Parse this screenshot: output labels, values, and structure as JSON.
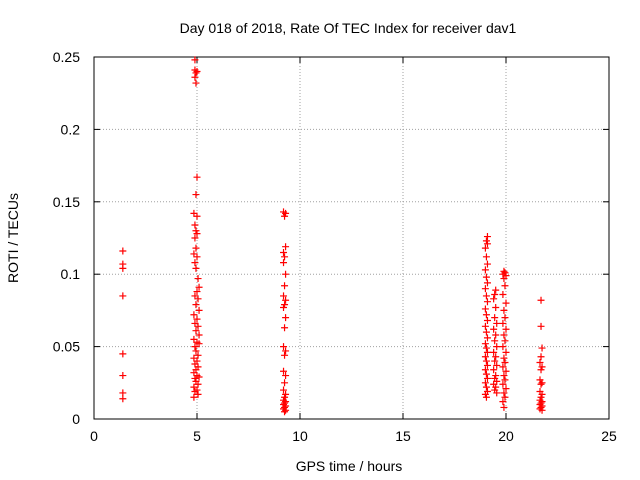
{
  "chart_data": {
    "type": "scatter",
    "title": "Day 018 of 2018, Rate Of TEC Index for receiver dav1",
    "xlabel": "GPS time / hours",
    "ylabel": "ROTI / TECUs",
    "xlim": [
      0,
      25
    ],
    "ylim": [
      0,
      0.25
    ],
    "x_ticks": [
      "0",
      "5",
      "10",
      "15",
      "20",
      "25"
    ],
    "y_ticks": [
      "0",
      "0.05",
      "0.1",
      "0.15",
      "0.2",
      "0.25"
    ],
    "grid": true,
    "legend": "none",
    "marker": "plus",
    "color": "#ff0000",
    "series": [
      {
        "points": [
          [
            1.4,
            0.116
          ],
          [
            1.4,
            0.107
          ],
          [
            1.4,
            0.104
          ],
          [
            1.4,
            0.085
          ],
          [
            1.4,
            0.045
          ],
          [
            1.4,
            0.03
          ],
          [
            1.4,
            0.018
          ],
          [
            1.4,
            0.014
          ],
          [
            4.9,
            0.248
          ],
          [
            4.9,
            0.241
          ],
          [
            4.95,
            0.239
          ],
          [
            5.0,
            0.24
          ],
          [
            4.9,
            0.236
          ],
          [
            4.95,
            0.232
          ],
          [
            5.0,
            0.167
          ],
          [
            4.95,
            0.155
          ],
          [
            4.85,
            0.142
          ],
          [
            5.0,
            0.14
          ],
          [
            4.9,
            0.134
          ],
          [
            4.95,
            0.13
          ],
          [
            5.0,
            0.128
          ],
          [
            4.9,
            0.125
          ],
          [
            4.95,
            0.118
          ],
          [
            4.85,
            0.114
          ],
          [
            5.0,
            0.112
          ],
          [
            4.9,
            0.108
          ],
          [
            4.95,
            0.104
          ],
          [
            5.05,
            0.097
          ],
          [
            5.1,
            0.091
          ],
          [
            5.0,
            0.088
          ],
          [
            4.9,
            0.085
          ],
          [
            5.05,
            0.083
          ],
          [
            4.95,
            0.079
          ],
          [
            5.1,
            0.075
          ],
          [
            4.85,
            0.072
          ],
          [
            5.0,
            0.069
          ],
          [
            4.9,
            0.066
          ],
          [
            5.05,
            0.064
          ],
          [
            4.95,
            0.061
          ],
          [
            5.1,
            0.058
          ],
          [
            4.85,
            0.055
          ],
          [
            5.0,
            0.053
          ],
          [
            5.1,
            0.052
          ],
          [
            4.9,
            0.05
          ],
          [
            4.95,
            0.047
          ],
          [
            5.05,
            0.044
          ],
          [
            4.85,
            0.042
          ],
          [
            5.0,
            0.04
          ],
          [
            4.9,
            0.038
          ],
          [
            5.05,
            0.036
          ],
          [
            4.95,
            0.034
          ],
          [
            4.85,
            0.032
          ],
          [
            5.0,
            0.03
          ],
          [
            5.1,
            0.029
          ],
          [
            4.9,
            0.028
          ],
          [
            4.95,
            0.026
          ],
          [
            5.05,
            0.024
          ],
          [
            4.85,
            0.022
          ],
          [
            5.0,
            0.02
          ],
          [
            4.9,
            0.019
          ],
          [
            5.05,
            0.017
          ],
          [
            4.85,
            0.015
          ],
          [
            9.2,
            0.143
          ],
          [
            9.3,
            0.142
          ],
          [
            9.25,
            0.14
          ],
          [
            9.3,
            0.119
          ],
          [
            9.2,
            0.115
          ],
          [
            9.25,
            0.112
          ],
          [
            9.2,
            0.108
          ],
          [
            9.3,
            0.1
          ],
          [
            9.25,
            0.092
          ],
          [
            9.2,
            0.085
          ],
          [
            9.3,
            0.082
          ],
          [
            9.25,
            0.079
          ],
          [
            9.2,
            0.077
          ],
          [
            9.3,
            0.07
          ],
          [
            9.25,
            0.063
          ],
          [
            9.2,
            0.05
          ],
          [
            9.3,
            0.047
          ],
          [
            9.25,
            0.044
          ],
          [
            9.2,
            0.033
          ],
          [
            9.3,
            0.03
          ],
          [
            9.25,
            0.025
          ],
          [
            9.2,
            0.02
          ],
          [
            9.3,
            0.017
          ],
          [
            9.25,
            0.015
          ],
          [
            9.2,
            0.013
          ],
          [
            9.3,
            0.012
          ],
          [
            9.25,
            0.011
          ],
          [
            9.2,
            0.01
          ],
          [
            9.3,
            0.009
          ],
          [
            9.25,
            0.008
          ],
          [
            9.2,
            0.007
          ],
          [
            9.3,
            0.006
          ],
          [
            9.25,
            0.005
          ],
          [
            19.1,
            0.126
          ],
          [
            19.05,
            0.123
          ],
          [
            19.1,
            0.121
          ],
          [
            19.0,
            0.118
          ],
          [
            19.05,
            0.112
          ],
          [
            19.1,
            0.107
          ],
          [
            19.0,
            0.103
          ],
          [
            19.05,
            0.098
          ],
          [
            19.1,
            0.094
          ],
          [
            19.0,
            0.09
          ],
          [
            19.05,
            0.085
          ],
          [
            19.1,
            0.081
          ],
          [
            19.0,
            0.076
          ],
          [
            19.05,
            0.072
          ],
          [
            19.1,
            0.068
          ],
          [
            19.0,
            0.064
          ],
          [
            19.05,
            0.06
          ],
          [
            19.1,
            0.056
          ],
          [
            19.0,
            0.052
          ],
          [
            19.05,
            0.049
          ],
          [
            19.1,
            0.046
          ],
          [
            19.0,
            0.043
          ],
          [
            19.05,
            0.04
          ],
          [
            19.1,
            0.037
          ],
          [
            19.0,
            0.034
          ],
          [
            19.05,
            0.031
          ],
          [
            19.1,
            0.028
          ],
          [
            19.0,
            0.025
          ],
          [
            19.05,
            0.022
          ],
          [
            19.1,
            0.019
          ],
          [
            19.0,
            0.017
          ],
          [
            19.05,
            0.015
          ],
          [
            19.5,
            0.089
          ],
          [
            19.45,
            0.086
          ],
          [
            19.4,
            0.083
          ],
          [
            19.5,
            0.077
          ],
          [
            19.45,
            0.07
          ],
          [
            19.55,
            0.066
          ],
          [
            19.4,
            0.062
          ],
          [
            19.5,
            0.058
          ],
          [
            19.45,
            0.054
          ],
          [
            19.55,
            0.05
          ],
          [
            19.4,
            0.046
          ],
          [
            19.5,
            0.043
          ],
          [
            19.45,
            0.04
          ],
          [
            19.55,
            0.037
          ],
          [
            19.4,
            0.034
          ],
          [
            19.5,
            0.03
          ],
          [
            19.45,
            0.028
          ],
          [
            19.55,
            0.026
          ],
          [
            19.4,
            0.024
          ],
          [
            19.5,
            0.022
          ],
          [
            19.45,
            0.02
          ],
          [
            19.55,
            0.018
          ],
          [
            19.9,
            0.102
          ],
          [
            19.95,
            0.101
          ],
          [
            19.85,
            0.1
          ],
          [
            20.0,
            0.099
          ],
          [
            19.9,
            0.097
          ],
          [
            19.95,
            0.092
          ],
          [
            19.85,
            0.086
          ],
          [
            20.0,
            0.08
          ],
          [
            19.9,
            0.075
          ],
          [
            19.95,
            0.07
          ],
          [
            19.85,
            0.066
          ],
          [
            20.0,
            0.062
          ],
          [
            19.9,
            0.058
          ],
          [
            19.95,
            0.054
          ],
          [
            19.85,
            0.05
          ],
          [
            20.0,
            0.046
          ],
          [
            19.9,
            0.042
          ],
          [
            19.95,
            0.039
          ],
          [
            19.85,
            0.036
          ],
          [
            20.0,
            0.033
          ],
          [
            19.9,
            0.03
          ],
          [
            19.95,
            0.027
          ],
          [
            19.85,
            0.024
          ],
          [
            20.0,
            0.021
          ],
          [
            19.9,
            0.018
          ],
          [
            19.95,
            0.015
          ],
          [
            19.85,
            0.012
          ],
          [
            19.9,
            0.008
          ],
          [
            21.7,
            0.082
          ],
          [
            21.7,
            0.064
          ],
          [
            21.75,
            0.049
          ],
          [
            21.7,
            0.043
          ],
          [
            21.65,
            0.039
          ],
          [
            21.75,
            0.036
          ],
          [
            21.7,
            0.034
          ],
          [
            21.65,
            0.027
          ],
          [
            21.75,
            0.025
          ],
          [
            21.7,
            0.024
          ],
          [
            21.65,
            0.019
          ],
          [
            21.75,
            0.017
          ],
          [
            21.7,
            0.015
          ],
          [
            21.65,
            0.013
          ],
          [
            21.75,
            0.012
          ],
          [
            21.7,
            0.011
          ],
          [
            21.65,
            0.01
          ],
          [
            21.75,
            0.009
          ],
          [
            21.7,
            0.008
          ],
          [
            21.65,
            0.007
          ],
          [
            21.75,
            0.006
          ]
        ]
      }
    ]
  }
}
